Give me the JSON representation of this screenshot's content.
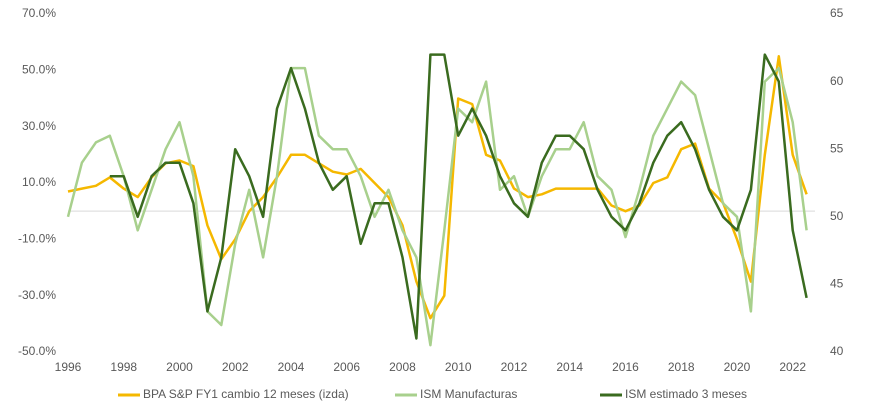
{
  "chart_data": {
    "type": "line",
    "x": [
      1996,
      1996.5,
      1997,
      1997.5,
      1998,
      1998.5,
      1999,
      1999.5,
      2000,
      2000.5,
      2001,
      2001.5,
      2002,
      2002.5,
      2003,
      2003.5,
      2004,
      2004.5,
      2005,
      2005.5,
      2006,
      2006.5,
      2007,
      2007.5,
      2008,
      2008.5,
      2009,
      2009.5,
      2010,
      2010.5,
      2011,
      2011.5,
      2012,
      2012.5,
      2013,
      2013.5,
      2014,
      2014.5,
      2015,
      2015.5,
      2016,
      2016.5,
      2017,
      2017.5,
      2018,
      2018.5,
      2019,
      2019.5,
      2020,
      2020.5,
      2021,
      2021.5,
      2022,
      2022.5
    ],
    "xlim": [
      1996,
      2022.8
    ],
    "xticks": [
      1996,
      1998,
      2000,
      2002,
      2004,
      2006,
      2008,
      2010,
      2012,
      2014,
      2016,
      2018,
      2020,
      2022
    ],
    "ylim": [
      -50,
      70
    ],
    "yticks": [
      {
        "value": 70,
        "label": "70.0%"
      },
      {
        "value": 50,
        "label": "50.0%"
      },
      {
        "value": 30,
        "label": "30.0%"
      },
      {
        "value": 10,
        "label": "10.0%"
      },
      {
        "value": -10,
        "label": "-10.0%"
      },
      {
        "value": -30,
        "label": "-30.0%"
      },
      {
        "value": -50,
        "label": "-50.0%"
      }
    ],
    "y2lim": [
      40,
      65
    ],
    "y2ticks": [
      65,
      60,
      55,
      50,
      45,
      40
    ],
    "series": [
      {
        "name": "BPA S&P FY1 cambio 12 meses (izda)",
        "color": "#f5b800",
        "values": [
          7,
          8,
          9,
          12,
          8,
          5,
          12,
          17,
          18,
          16,
          -5,
          -17,
          -10,
          0,
          5,
          12,
          20,
          20,
          17,
          14,
          13,
          15,
          10,
          5,
          -5,
          -25,
          -38,
          -30,
          40,
          38,
          20,
          18,
          8,
          5,
          6,
          8,
          8,
          8,
          8,
          2,
          0,
          2,
          10,
          12,
          22,
          24,
          8,
          3,
          -10,
          -25,
          20,
          55,
          20,
          6
        ]
      },
      {
        "name": "ISM Manufacturas",
        "color": "#a8d08d",
        "axis": "y2",
        "values": [
          50,
          54,
          55.5,
          56,
          53,
          49,
          52,
          55,
          57,
          53,
          43,
          42,
          48,
          52,
          47,
          53,
          61,
          61,
          56,
          55,
          55,
          53,
          50,
          52,
          49,
          47,
          40.5,
          49,
          58,
          57,
          60,
          52,
          53,
          50,
          53,
          55,
          55,
          57,
          53,
          52,
          48.5,
          52,
          56,
          58,
          60,
          59,
          55,
          51,
          50,
          43,
          60,
          61,
          57,
          49
        ]
      },
      {
        "name": "ISM estimado 3 meses",
        "color": "#3a6b1f",
        "axis": "y2",
        "values": [
          null,
          null,
          null,
          53,
          53,
          50,
          53,
          54,
          54,
          51,
          43,
          47,
          55,
          53,
          50,
          58,
          61,
          58,
          54,
          52,
          53,
          48,
          51,
          51,
          47,
          41,
          62,
          62,
          56,
          58,
          56,
          53,
          51,
          50,
          54,
          56,
          56,
          55,
          52,
          50,
          49,
          51,
          54,
          56,
          57,
          55,
          52,
          50,
          49,
          52,
          62,
          60,
          49,
          44
        ]
      }
    ]
  }
}
